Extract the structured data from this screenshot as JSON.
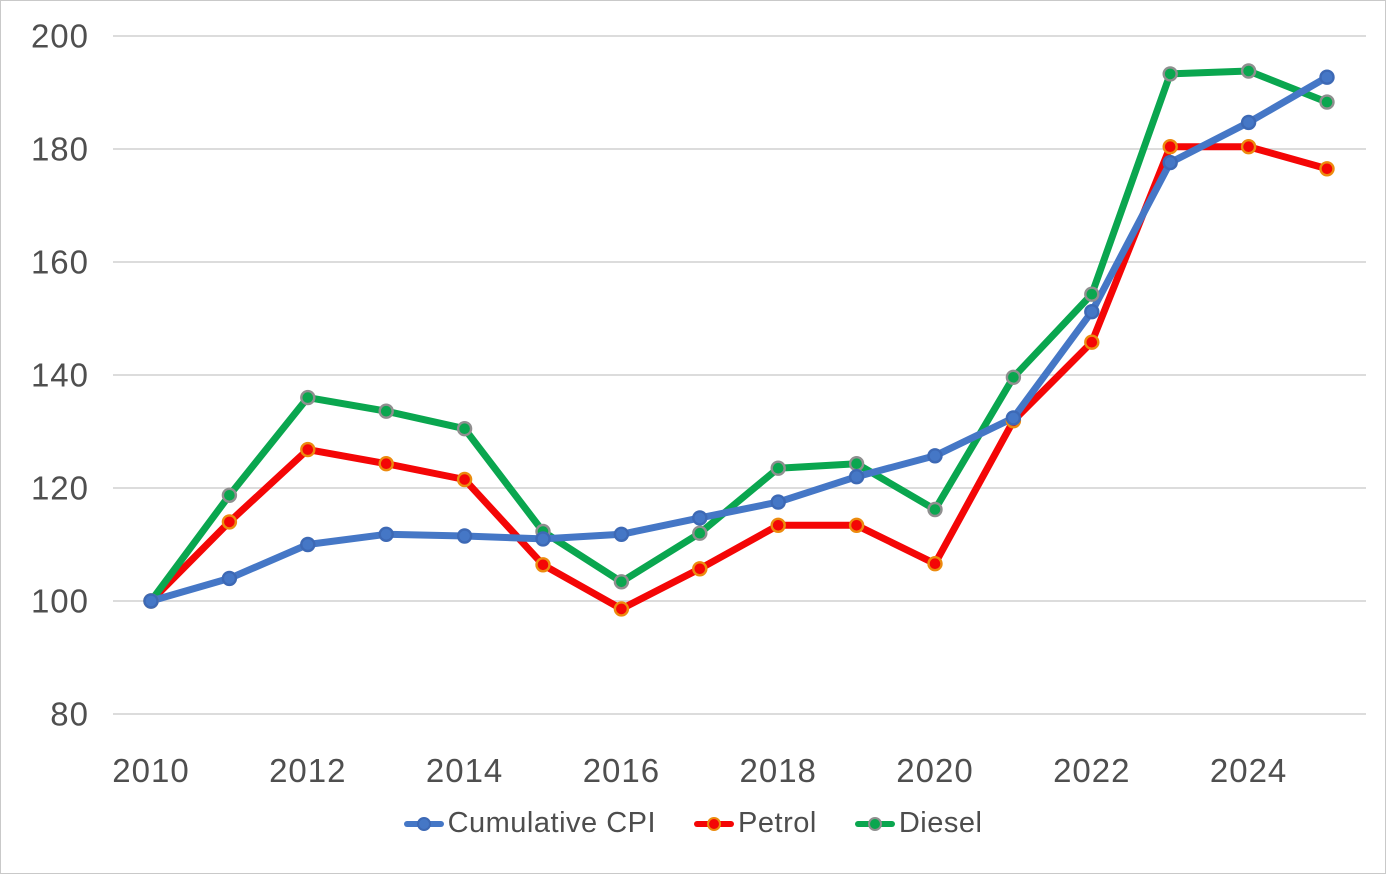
{
  "chart_data": {
    "type": "line",
    "title": "",
    "xlabel": "",
    "ylabel": "",
    "x": [
      2010,
      2011,
      2012,
      2013,
      2014,
      2015,
      2016,
      2017,
      2018,
      2019,
      2020,
      2021,
      2022,
      2023,
      2024,
      2025
    ],
    "series": [
      {
        "name": "Cumulative CPI",
        "color": "#4577c6",
        "marker_ring": "#3d69b5",
        "values": [
          100,
          104,
          110,
          111.8,
          111.5,
          111,
          111.8,
          114.7,
          117.5,
          122,
          125.7,
          132.4,
          151.2,
          177.6,
          184.7,
          192.7
        ]
      },
      {
        "name": "Petrol",
        "color": "#f40606",
        "marker_ring": "#ec8b0e",
        "values": [
          100,
          114,
          126.8,
          124.3,
          121.5,
          106.4,
          98.6,
          105.7,
          113.4,
          113.4,
          106.6,
          131.9,
          145.8,
          180.4,
          180.4,
          176.5
        ]
      },
      {
        "name": "Diesel",
        "color": "#0aa64f",
        "marker_ring": "#8f8f8f",
        "values": [
          100,
          118.7,
          136,
          133.6,
          130.5,
          112.3,
          103.4,
          112,
          123.5,
          124.3,
          116.2,
          139.6,
          154.3,
          193.3,
          193.8,
          188.3
        ]
      }
    ],
    "ylim": [
      80,
      200
    ],
    "yticks": [
      80,
      100,
      120,
      140,
      160,
      180,
      200
    ],
    "xtick_labels": [
      "2010",
      "2012",
      "2014",
      "2016",
      "2018",
      "2020",
      "2022",
      "2024"
    ],
    "grid": "horizontal",
    "gridline_color": "#dcdcdc",
    "tick_label_color": "#4f4f4f",
    "legend_position": "bottom"
  }
}
